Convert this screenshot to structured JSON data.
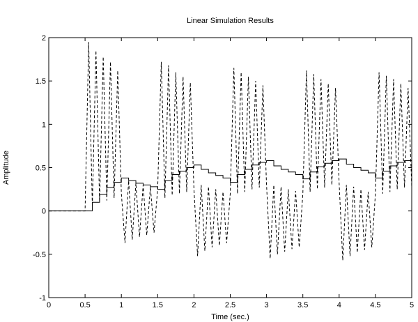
{
  "chart_data": {
    "type": "line",
    "title": "Linear Simulation Results",
    "xlabel": "Time (sec.)",
    "ylabel": "Amplitude",
    "xlim": [
      0,
      5
    ],
    "ylim": [
      -1,
      2
    ],
    "grid": false,
    "legend": "none",
    "x_ticks": [
      "0",
      "0.5",
      "1",
      "1.5",
      "2",
      "2.5",
      "3",
      "3.5",
      "4",
      "4.5",
      "5"
    ],
    "y_ticks": [
      "-1",
      "-0.5",
      "0",
      "0.5",
      "1",
      "1.5",
      "2"
    ],
    "series": [
      {
        "style": "solid",
        "color": "#000000",
        "x": [
          0,
          0.6,
          0.6,
          0.7,
          0.7,
          0.8,
          0.8,
          0.9,
          0.9,
          1.0,
          1.0,
          1.1,
          1.1,
          1.2,
          1.2,
          1.3,
          1.3,
          1.4,
          1.4,
          1.5,
          1.5,
          1.6,
          1.6,
          1.7,
          1.7,
          1.8,
          1.8,
          1.9,
          1.9,
          2.0,
          2.0,
          2.1,
          2.1,
          2.2,
          2.2,
          2.3,
          2.3,
          2.4,
          2.4,
          2.5,
          2.5,
          2.6,
          2.6,
          2.7,
          2.7,
          2.8,
          2.8,
          2.9,
          2.9,
          3.0,
          3.0,
          3.1,
          3.1,
          3.2,
          3.2,
          3.3,
          3.3,
          3.4,
          3.4,
          3.5,
          3.5,
          3.6,
          3.6,
          3.7,
          3.7,
          3.8,
          3.8,
          3.9,
          3.9,
          4.0,
          4.0,
          4.1,
          4.1,
          4.2,
          4.2,
          4.3,
          4.3,
          4.4,
          4.4,
          4.5,
          4.5,
          4.6,
          4.6,
          4.7,
          4.7,
          4.8,
          4.8,
          4.9,
          4.9,
          5.0
        ],
        "y": [
          0,
          0,
          0.1,
          0.1,
          0.19,
          0.19,
          0.27,
          0.27,
          0.33,
          0.33,
          0.38,
          0.38,
          0.35,
          0.35,
          0.32,
          0.32,
          0.3,
          0.3,
          0.28,
          0.28,
          0.25,
          0.25,
          0.35,
          0.35,
          0.42,
          0.42,
          0.46,
          0.46,
          0.5,
          0.5,
          0.53,
          0.53,
          0.48,
          0.48,
          0.44,
          0.44,
          0.41,
          0.41,
          0.38,
          0.38,
          0.33,
          0.33,
          0.42,
          0.42,
          0.48,
          0.48,
          0.53,
          0.53,
          0.56,
          0.56,
          0.58,
          0.58,
          0.52,
          0.52,
          0.48,
          0.48,
          0.45,
          0.45,
          0.42,
          0.42,
          0.37,
          0.37,
          0.45,
          0.45,
          0.51,
          0.51,
          0.55,
          0.55,
          0.58,
          0.58,
          0.6,
          0.6,
          0.54,
          0.54,
          0.5,
          0.5,
          0.47,
          0.47,
          0.44,
          0.44,
          0.38,
          0.38,
          0.46,
          0.46,
          0.52,
          0.52,
          0.56,
          0.56,
          0.58,
          0.58
        ]
      },
      {
        "style": "dashed",
        "color": "#000000",
        "x": [
          0,
          0.5,
          0.55,
          0.6,
          0.65,
          0.7,
          0.75,
          0.8,
          0.85,
          0.9,
          0.95,
          1.0,
          1.05,
          1.1,
          1.15,
          1.2,
          1.25,
          1.3,
          1.35,
          1.4,
          1.45,
          1.5,
          1.55,
          1.6,
          1.65,
          1.7,
          1.75,
          1.8,
          1.85,
          1.9,
          1.95,
          2.0,
          2.05,
          2.1,
          2.15,
          2.2,
          2.25,
          2.3,
          2.35,
          2.4,
          2.45,
          2.5,
          2.55,
          2.6,
          2.65,
          2.7,
          2.75,
          2.8,
          2.85,
          2.9,
          2.95,
          3.0,
          3.05,
          3.1,
          3.15,
          3.2,
          3.25,
          3.3,
          3.35,
          3.4,
          3.45,
          3.5,
          3.55,
          3.6,
          3.65,
          3.7,
          3.75,
          3.8,
          3.85,
          3.9,
          3.95,
          4.0,
          4.05,
          4.1,
          4.15,
          4.2,
          4.25,
          4.3,
          4.35,
          4.4,
          4.45,
          4.5,
          4.55,
          4.6,
          4.65,
          4.7,
          4.75,
          4.8,
          4.85,
          4.9,
          4.95,
          5.0
        ],
        "y": [
          0,
          0,
          1.95,
          0.05,
          1.85,
          0.1,
          1.78,
          0.12,
          1.72,
          0.15,
          1.62,
          0.2,
          -0.37,
          0.35,
          -0.33,
          0.32,
          -0.3,
          0.3,
          -0.28,
          0.28,
          -0.25,
          0.25,
          1.72,
          0.15,
          1.68,
          0.18,
          1.6,
          0.2,
          1.55,
          0.22,
          1.48,
          0.25,
          -0.52,
          0.3,
          -0.46,
          0.28,
          -0.42,
          0.25,
          -0.4,
          0.22,
          -0.37,
          0.2,
          1.65,
          0.2,
          1.6,
          0.22,
          1.55,
          0.25,
          1.5,
          0.27,
          1.45,
          0.3,
          -0.55,
          0.3,
          -0.5,
          0.28,
          -0.47,
          0.25,
          -0.44,
          0.23,
          -0.42,
          0.2,
          1.62,
          0.22,
          1.58,
          0.25,
          1.52,
          0.27,
          1.47,
          0.3,
          1.42,
          0.32,
          -0.57,
          0.3,
          -0.52,
          0.28,
          -0.48,
          0.25,
          -0.45,
          0.22,
          -0.42,
          0.2,
          1.6,
          0.2,
          1.56,
          0.22,
          1.52,
          0.25,
          1.47,
          0.27,
          1.42,
          0.28
        ]
      }
    ]
  }
}
